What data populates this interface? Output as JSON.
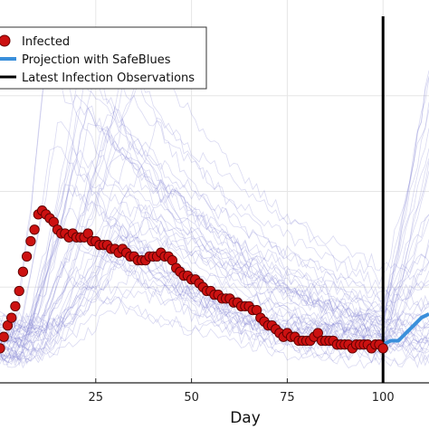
{
  "chart_data": {
    "type": "line",
    "title": "",
    "xlabel": "Day",
    "ylabel": "",
    "x_ticks": [
      25,
      50,
      75,
      100
    ],
    "xlim": [
      0,
      112
    ],
    "ylim": [
      0,
      1
    ],
    "grid": true,
    "legend_position": "top-left",
    "legend": [
      {
        "name": "Infected",
        "kind": "marker",
        "color": "#cc1111"
      },
      {
        "name": "Projection with SafeBlues",
        "kind": "line",
        "color": "#3a8fdb"
      },
      {
        "name": "Latest Infection Observations",
        "kind": "line",
        "color": "#000000"
      }
    ],
    "vline_x": 100,
    "series": [
      {
        "name": "Infected",
        "color": "#cc1111",
        "x": [
          0,
          1,
          2,
          3,
          4,
          5,
          6,
          7,
          8,
          9,
          10,
          11,
          12,
          13,
          14,
          15,
          16,
          17,
          18,
          19,
          20,
          21,
          22,
          23,
          24,
          25,
          26,
          27,
          28,
          29,
          30,
          31,
          32,
          33,
          34,
          35,
          36,
          37,
          38,
          39,
          40,
          41,
          42,
          43,
          44,
          45,
          46,
          47,
          48,
          49,
          50,
          51,
          52,
          53,
          54,
          55,
          56,
          57,
          58,
          59,
          60,
          61,
          62,
          63,
          64,
          65,
          66,
          67,
          68,
          69,
          70,
          71,
          72,
          73,
          74,
          75,
          76,
          77,
          78,
          79,
          80,
          81,
          82,
          83,
          84,
          85,
          86,
          87,
          88,
          89,
          90,
          91,
          92,
          93,
          94,
          95,
          96,
          97,
          98,
          99,
          100
        ],
        "values": [
          0.09,
          0.12,
          0.15,
          0.17,
          0.2,
          0.24,
          0.29,
          0.33,
          0.37,
          0.4,
          0.44,
          0.45,
          0.44,
          0.43,
          0.42,
          0.4,
          0.39,
          0.39,
          0.38,
          0.39,
          0.38,
          0.38,
          0.38,
          0.39,
          0.37,
          0.37,
          0.36,
          0.36,
          0.36,
          0.35,
          0.35,
          0.34,
          0.35,
          0.34,
          0.33,
          0.33,
          0.32,
          0.32,
          0.32,
          0.33,
          0.33,
          0.33,
          0.34,
          0.33,
          0.33,
          0.32,
          0.3,
          0.29,
          0.28,
          0.28,
          0.27,
          0.27,
          0.26,
          0.25,
          0.24,
          0.24,
          0.23,
          0.23,
          0.22,
          0.22,
          0.22,
          0.21,
          0.21,
          0.2,
          0.2,
          0.2,
          0.19,
          0.19,
          0.17,
          0.16,
          0.15,
          0.15,
          0.14,
          0.13,
          0.12,
          0.13,
          0.12,
          0.12,
          0.11,
          0.11,
          0.11,
          0.11,
          0.12,
          0.13,
          0.11,
          0.11,
          0.11,
          0.11,
          0.1,
          0.1,
          0.1,
          0.1,
          0.09,
          0.1,
          0.1,
          0.1,
          0.1,
          0.09,
          0.1,
          0.1,
          0.09
        ]
      },
      {
        "name": "Projection with SafeBlues",
        "color": "#3a8fdb",
        "x": [
          100,
          102,
          104,
          106,
          108,
          110,
          112
        ],
        "values": [
          0.1,
          0.11,
          0.11,
          0.13,
          0.15,
          0.17,
          0.18
        ]
      }
    ]
  }
}
